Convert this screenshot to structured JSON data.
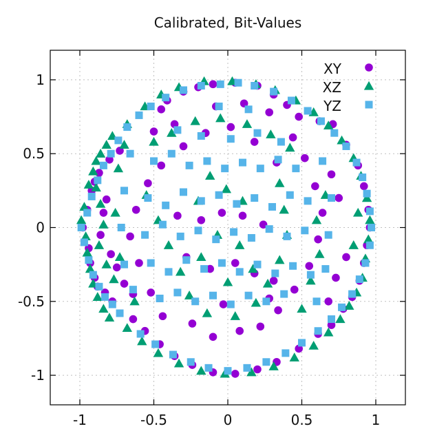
{
  "chart_data": {
    "type": "scatter",
    "title": "Calibrated, Bit-Values",
    "xlabel": "",
    "ylabel": "",
    "xlim": [
      -1.2,
      1.2
    ],
    "ylim": [
      -1.2,
      1.2
    ],
    "xticks": [
      -1,
      -0.5,
      0,
      0.5,
      1
    ],
    "yticks": [
      -1,
      -0.5,
      0,
      0.5,
      1
    ],
    "xtick_labels": [
      "-1",
      "-0.5",
      "0",
      "0.5",
      "1"
    ],
    "ytick_labels": [
      "-1",
      "-0.5",
      "0",
      "0.5",
      "1"
    ],
    "grid": true,
    "legend_position": "top-right",
    "colors": {
      "xy": "#9400d3",
      "xz": "#009e73",
      "yz": "#56b4e9",
      "frame": "#000000",
      "grid": "#bfbfbf"
    },
    "series": [
      {
        "name": "XY",
        "marker": "circle",
        "points": [
          [
            -0.98,
            0.0
          ],
          [
            -0.95,
            0.12
          ],
          [
            -0.92,
            0.25
          ],
          [
            -0.9,
            0.31
          ],
          [
            -0.94,
            -0.14
          ],
          [
            -0.93,
            -0.24
          ],
          [
            -0.9,
            -0.34
          ],
          [
            -0.88,
            -0.4
          ],
          [
            -0.83,
            -0.44
          ],
          [
            -0.78,
            -0.5
          ],
          [
            -0.87,
            0.37
          ],
          [
            -0.8,
            0.46
          ],
          [
            -0.73,
            0.52
          ],
          [
            -0.84,
            0.1
          ],
          [
            -0.86,
            -0.05
          ],
          [
            -0.79,
            -0.18
          ],
          [
            -0.82,
            0.19
          ],
          [
            -0.75,
            -0.27
          ],
          [
            -0.7,
            -0.38
          ],
          [
            -0.64,
            -0.45
          ],
          [
            -0.45,
            0.8
          ],
          [
            -0.41,
            0.86
          ],
          [
            -0.3,
            0.92
          ],
          [
            -0.2,
            0.95
          ],
          [
            -0.1,
            0.97
          ],
          [
            0.05,
            0.98
          ],
          [
            0.2,
            0.96
          ],
          [
            0.31,
            0.9
          ],
          [
            0.4,
            0.83
          ],
          [
            0.48,
            0.75
          ],
          [
            0.62,
            0.72
          ],
          [
            0.71,
            0.7
          ],
          [
            0.8,
            0.56
          ],
          [
            0.88,
            0.42
          ],
          [
            0.92,
            0.28
          ],
          [
            0.95,
            0.12
          ],
          [
            0.96,
            0.0
          ],
          [
            0.94,
            -0.12
          ],
          [
            0.92,
            -0.24
          ],
          [
            0.89,
            -0.36
          ],
          [
            0.84,
            -0.47
          ],
          [
            0.78,
            -0.55
          ],
          [
            0.7,
            -0.66
          ],
          [
            0.61,
            -0.72
          ],
          [
            0.48,
            -0.82
          ],
          [
            0.33,
            -0.91
          ],
          [
            0.2,
            -0.96
          ],
          [
            0.05,
            -0.99
          ],
          [
            -0.1,
            -0.98
          ],
          [
            -0.24,
            -0.93
          ],
          [
            -0.36,
            -0.87
          ],
          [
            -0.46,
            -0.79
          ],
          [
            -0.56,
            -0.7
          ],
          [
            -0.64,
            -0.62
          ],
          [
            -0.45,
            0.42
          ],
          [
            -0.3,
            0.55
          ],
          [
            -0.15,
            0.64
          ],
          [
            0.02,
            0.68
          ],
          [
            0.18,
            0.58
          ],
          [
            0.33,
            0.44
          ],
          [
            -0.34,
            0.08
          ],
          [
            -0.18,
            0.05
          ],
          [
            -0.04,
            0.1
          ],
          [
            0.1,
            0.08
          ],
          [
            0.24,
            0.02
          ],
          [
            -0.28,
            -0.2
          ],
          [
            -0.12,
            -0.28
          ],
          [
            0.05,
            -0.24
          ],
          [
            0.18,
            -0.31
          ],
          [
            0.31,
            -0.36
          ],
          [
            -0.44,
            -0.6
          ],
          [
            -0.24,
            -0.65
          ],
          [
            -0.1,
            -0.74
          ],
          [
            0.08,
            -0.7
          ],
          [
            0.22,
            -0.67
          ],
          [
            0.34,
            -0.56
          ],
          [
            0.45,
            -0.42
          ],
          [
            0.55,
            -0.26
          ],
          [
            0.61,
            -0.08
          ],
          [
            0.64,
            0.1
          ],
          [
            0.59,
            0.28
          ],
          [
            0.52,
            0.47
          ],
          [
            0.44,
            0.61
          ],
          [
            -0.54,
            0.3
          ],
          [
            -0.62,
            0.12
          ],
          [
            -0.66,
            -0.06
          ],
          [
            -0.6,
            -0.24
          ],
          [
            -0.52,
            -0.44
          ],
          [
            0.75,
            0.2
          ],
          [
            0.7,
            0.36
          ],
          [
            -0.5,
            0.65
          ],
          [
            -0.36,
            0.7
          ],
          [
            -0.08,
            0.82
          ],
          [
            0.11,
            0.84
          ],
          [
            0.28,
            0.78
          ],
          [
            0.8,
            -0.2
          ],
          [
            0.73,
            -0.34
          ],
          [
            0.68,
            -0.5
          ],
          [
            0.28,
            -0.48
          ],
          [
            -0.03,
            -0.52
          ]
        ]
      },
      {
        "name": "XZ",
        "marker": "triangle",
        "points": [
          [
            -0.99,
            0.05
          ],
          [
            -0.97,
            0.14
          ],
          [
            -0.94,
            0.29
          ],
          [
            -0.91,
            0.38
          ],
          [
            -0.89,
            0.45
          ],
          [
            -0.86,
            0.5
          ],
          [
            -0.82,
            0.56
          ],
          [
            -0.78,
            0.62
          ],
          [
            -0.96,
            -0.06
          ],
          [
            -0.95,
            -0.17
          ],
          [
            -0.93,
            -0.28
          ],
          [
            -0.91,
            -0.38
          ],
          [
            -0.88,
            -0.47
          ],
          [
            -0.84,
            -0.55
          ],
          [
            -0.8,
            -0.61
          ],
          [
            -0.89,
            0.27
          ],
          [
            -0.86,
            0.16
          ],
          [
            -0.84,
            0.02
          ],
          [
            -0.87,
            -0.12
          ],
          [
            -0.82,
            -0.25
          ],
          [
            -0.77,
            -0.35
          ],
          [
            -0.74,
            0.4
          ],
          [
            -0.7,
            0.56
          ],
          [
            -0.68,
            0.7
          ],
          [
            -0.56,
            0.82
          ],
          [
            -0.45,
            0.9
          ],
          [
            -0.33,
            0.95
          ],
          [
            -0.16,
            0.99
          ],
          [
            0.03,
            0.99
          ],
          [
            0.19,
            0.97
          ],
          [
            0.32,
            0.93
          ],
          [
            0.46,
            0.86
          ],
          [
            0.58,
            0.78
          ],
          [
            0.68,
            0.69
          ],
          [
            0.77,
            0.59
          ],
          [
            0.85,
            0.47
          ],
          [
            0.9,
            0.35
          ],
          [
            0.94,
            0.2
          ],
          [
            0.96,
            0.05
          ],
          [
            0.95,
            -0.08
          ],
          [
            0.93,
            -0.21
          ],
          [
            0.91,
            -0.34
          ],
          [
            0.87,
            -0.44
          ],
          [
            0.82,
            -0.53
          ],
          [
            0.76,
            -0.62
          ],
          [
            0.68,
            -0.71
          ],
          [
            0.58,
            -0.8
          ],
          [
            0.45,
            -0.88
          ],
          [
            0.31,
            -0.94
          ],
          [
            0.16,
            -0.98
          ],
          [
            -0.02,
            -0.99
          ],
          [
            -0.18,
            -0.97
          ],
          [
            -0.33,
            -0.92
          ],
          [
            -0.47,
            -0.85
          ],
          [
            -0.58,
            -0.77
          ],
          [
            -0.68,
            -0.68
          ],
          [
            -0.5,
            0.58
          ],
          [
            -0.38,
            0.64
          ],
          [
            -0.22,
            0.72
          ],
          [
            -0.05,
            0.74
          ],
          [
            0.13,
            0.7
          ],
          [
            0.29,
            0.63
          ],
          [
            0.42,
            0.54
          ],
          [
            -0.55,
            0.22
          ],
          [
            -0.47,
            0.05
          ],
          [
            -0.4,
            -0.12
          ],
          [
            -0.32,
            -0.3
          ],
          [
            -0.26,
            -0.46
          ],
          [
            -0.14,
            -0.58
          ],
          [
            0.05,
            -0.6
          ],
          [
            0.19,
            -0.51
          ],
          [
            0.27,
            -0.38
          ],
          [
            0.35,
            -0.22
          ],
          [
            0.4,
            -0.05
          ],
          [
            0.38,
            0.12
          ],
          [
            0.35,
            0.3
          ],
          [
            -0.12,
            0.35
          ],
          [
            -0.01,
            0.26
          ],
          [
            0.1,
            0.18
          ],
          [
            -0.2,
            0.18
          ],
          [
            -0.07,
            -0.05
          ],
          [
            0.08,
            -0.12
          ],
          [
            -0.18,
            -0.2
          ],
          [
            0.0,
            -0.37
          ],
          [
            0.17,
            -0.28
          ],
          [
            0.6,
            0.05
          ],
          [
            0.66,
            0.22
          ],
          [
            0.62,
            -0.18
          ],
          [
            0.56,
            -0.36
          ],
          [
            0.5,
            -0.55
          ],
          [
            -0.63,
            -0.5
          ],
          [
            -0.73,
            -0.2
          ],
          [
            -0.76,
            0.1
          ],
          [
            0.88,
            0.1
          ],
          [
            0.85,
            -0.12
          ]
        ]
      },
      {
        "name": "YZ",
        "marker": "square",
        "points": [
          [
            -0.99,
            0.0
          ],
          [
            -0.97,
            -0.1
          ],
          [
            -0.94,
            -0.22
          ],
          [
            -0.91,
            -0.32
          ],
          [
            -0.87,
            -0.4
          ],
          [
            -0.83,
            -0.47
          ],
          [
            -0.78,
            -0.52
          ],
          [
            -0.73,
            -0.58
          ],
          [
            -0.95,
            0.1
          ],
          [
            -0.92,
            0.21
          ],
          [
            -0.88,
            0.32
          ],
          [
            -0.84,
            0.42
          ],
          [
            -0.79,
            0.5
          ],
          [
            -0.74,
            0.59
          ],
          [
            -0.68,
            0.68
          ],
          [
            -0.6,
            0.76
          ],
          [
            -0.52,
            0.82
          ],
          [
            -0.42,
            0.88
          ],
          [
            -0.3,
            0.93
          ],
          [
            -0.18,
            0.96
          ],
          [
            -0.05,
            0.97
          ],
          [
            0.07,
            0.98
          ],
          [
            0.18,
            0.96
          ],
          [
            0.31,
            0.92
          ],
          [
            0.43,
            0.86
          ],
          [
            0.54,
            0.79
          ],
          [
            0.63,
            0.72
          ],
          [
            0.72,
            0.64
          ],
          [
            0.8,
            0.55
          ],
          [
            0.87,
            0.44
          ],
          [
            0.91,
            0.34
          ],
          [
            0.94,
            0.23
          ],
          [
            0.96,
            0.11
          ],
          [
            0.97,
            0.0
          ],
          [
            0.96,
            -0.12
          ],
          [
            0.93,
            -0.24
          ],
          [
            0.89,
            -0.35
          ],
          [
            0.84,
            -0.45
          ],
          [
            0.77,
            -0.54
          ],
          [
            0.7,
            -0.62
          ],
          [
            0.61,
            -0.7
          ],
          [
            0.5,
            -0.78
          ],
          [
            0.39,
            -0.85
          ],
          [
            0.26,
            -0.91
          ],
          [
            0.13,
            -0.95
          ],
          [
            0.0,
            -0.97
          ],
          [
            -0.13,
            -0.95
          ],
          [
            -0.25,
            -0.91
          ],
          [
            -0.37,
            -0.86
          ],
          [
            -0.49,
            -0.79
          ],
          [
            -0.59,
            -0.72
          ],
          [
            -0.5,
            0.45
          ],
          [
            -0.38,
            0.5
          ],
          [
            -0.26,
            0.42
          ],
          [
            -0.14,
            0.45
          ],
          [
            -0.02,
            0.4
          ],
          [
            0.1,
            0.44
          ],
          [
            0.22,
            0.4
          ],
          [
            0.34,
            0.46
          ],
          [
            0.46,
            0.4
          ],
          [
            -0.54,
            0.2
          ],
          [
            -0.42,
            0.15
          ],
          [
            -0.3,
            0.24
          ],
          [
            -0.18,
            0.18
          ],
          [
            -0.06,
            0.22
          ],
          [
            0.06,
            0.16
          ],
          [
            0.18,
            0.2
          ],
          [
            0.3,
            0.14
          ],
          [
            0.42,
            0.22
          ],
          [
            0.54,
            0.18
          ],
          [
            -0.56,
            -0.05
          ],
          [
            -0.44,
            0.02
          ],
          [
            -0.32,
            -0.06
          ],
          [
            -0.2,
            -0.02
          ],
          [
            -0.08,
            -0.08
          ],
          [
            0.04,
            -0.03
          ],
          [
            0.16,
            -0.07
          ],
          [
            0.28,
            -0.01
          ],
          [
            0.4,
            -0.06
          ],
          [
            0.52,
            -0.02
          ],
          [
            -0.52,
            -0.24
          ],
          [
            -0.4,
            -0.3
          ],
          [
            -0.28,
            -0.22
          ],
          [
            -0.16,
            -0.28
          ],
          [
            -0.04,
            -0.24
          ],
          [
            0.08,
            -0.3
          ],
          [
            0.2,
            -0.25
          ],
          [
            0.32,
            -0.31
          ],
          [
            0.44,
            -0.26
          ],
          [
            0.56,
            -0.32
          ],
          [
            -0.46,
            -0.48
          ],
          [
            -0.34,
            -0.44
          ],
          [
            -0.22,
            -0.5
          ],
          [
            -0.1,
            -0.46
          ],
          [
            0.02,
            -0.52
          ],
          [
            0.14,
            -0.46
          ],
          [
            0.26,
            -0.5
          ],
          [
            0.38,
            -0.45
          ],
          [
            -0.34,
            0.66
          ],
          [
            -0.18,
            0.62
          ],
          [
            0.02,
            0.6
          ],
          [
            0.2,
            0.64
          ],
          [
            0.36,
            0.58
          ],
          [
            -0.06,
            0.82
          ],
          [
            0.14,
            0.8
          ],
          [
            0.64,
            0.45
          ],
          [
            0.7,
            0.2
          ],
          [
            0.68,
            -0.05
          ],
          [
            0.66,
            -0.28
          ],
          [
            0.6,
            -0.5
          ],
          [
            -0.66,
            0.5
          ],
          [
            -0.7,
            0.25
          ],
          [
            -0.72,
            0.0
          ],
          [
            -0.7,
            -0.25
          ],
          [
            -0.64,
            -0.42
          ]
        ]
      }
    ]
  },
  "legend": {
    "entries": [
      "XY",
      "XZ",
      "YZ"
    ]
  }
}
